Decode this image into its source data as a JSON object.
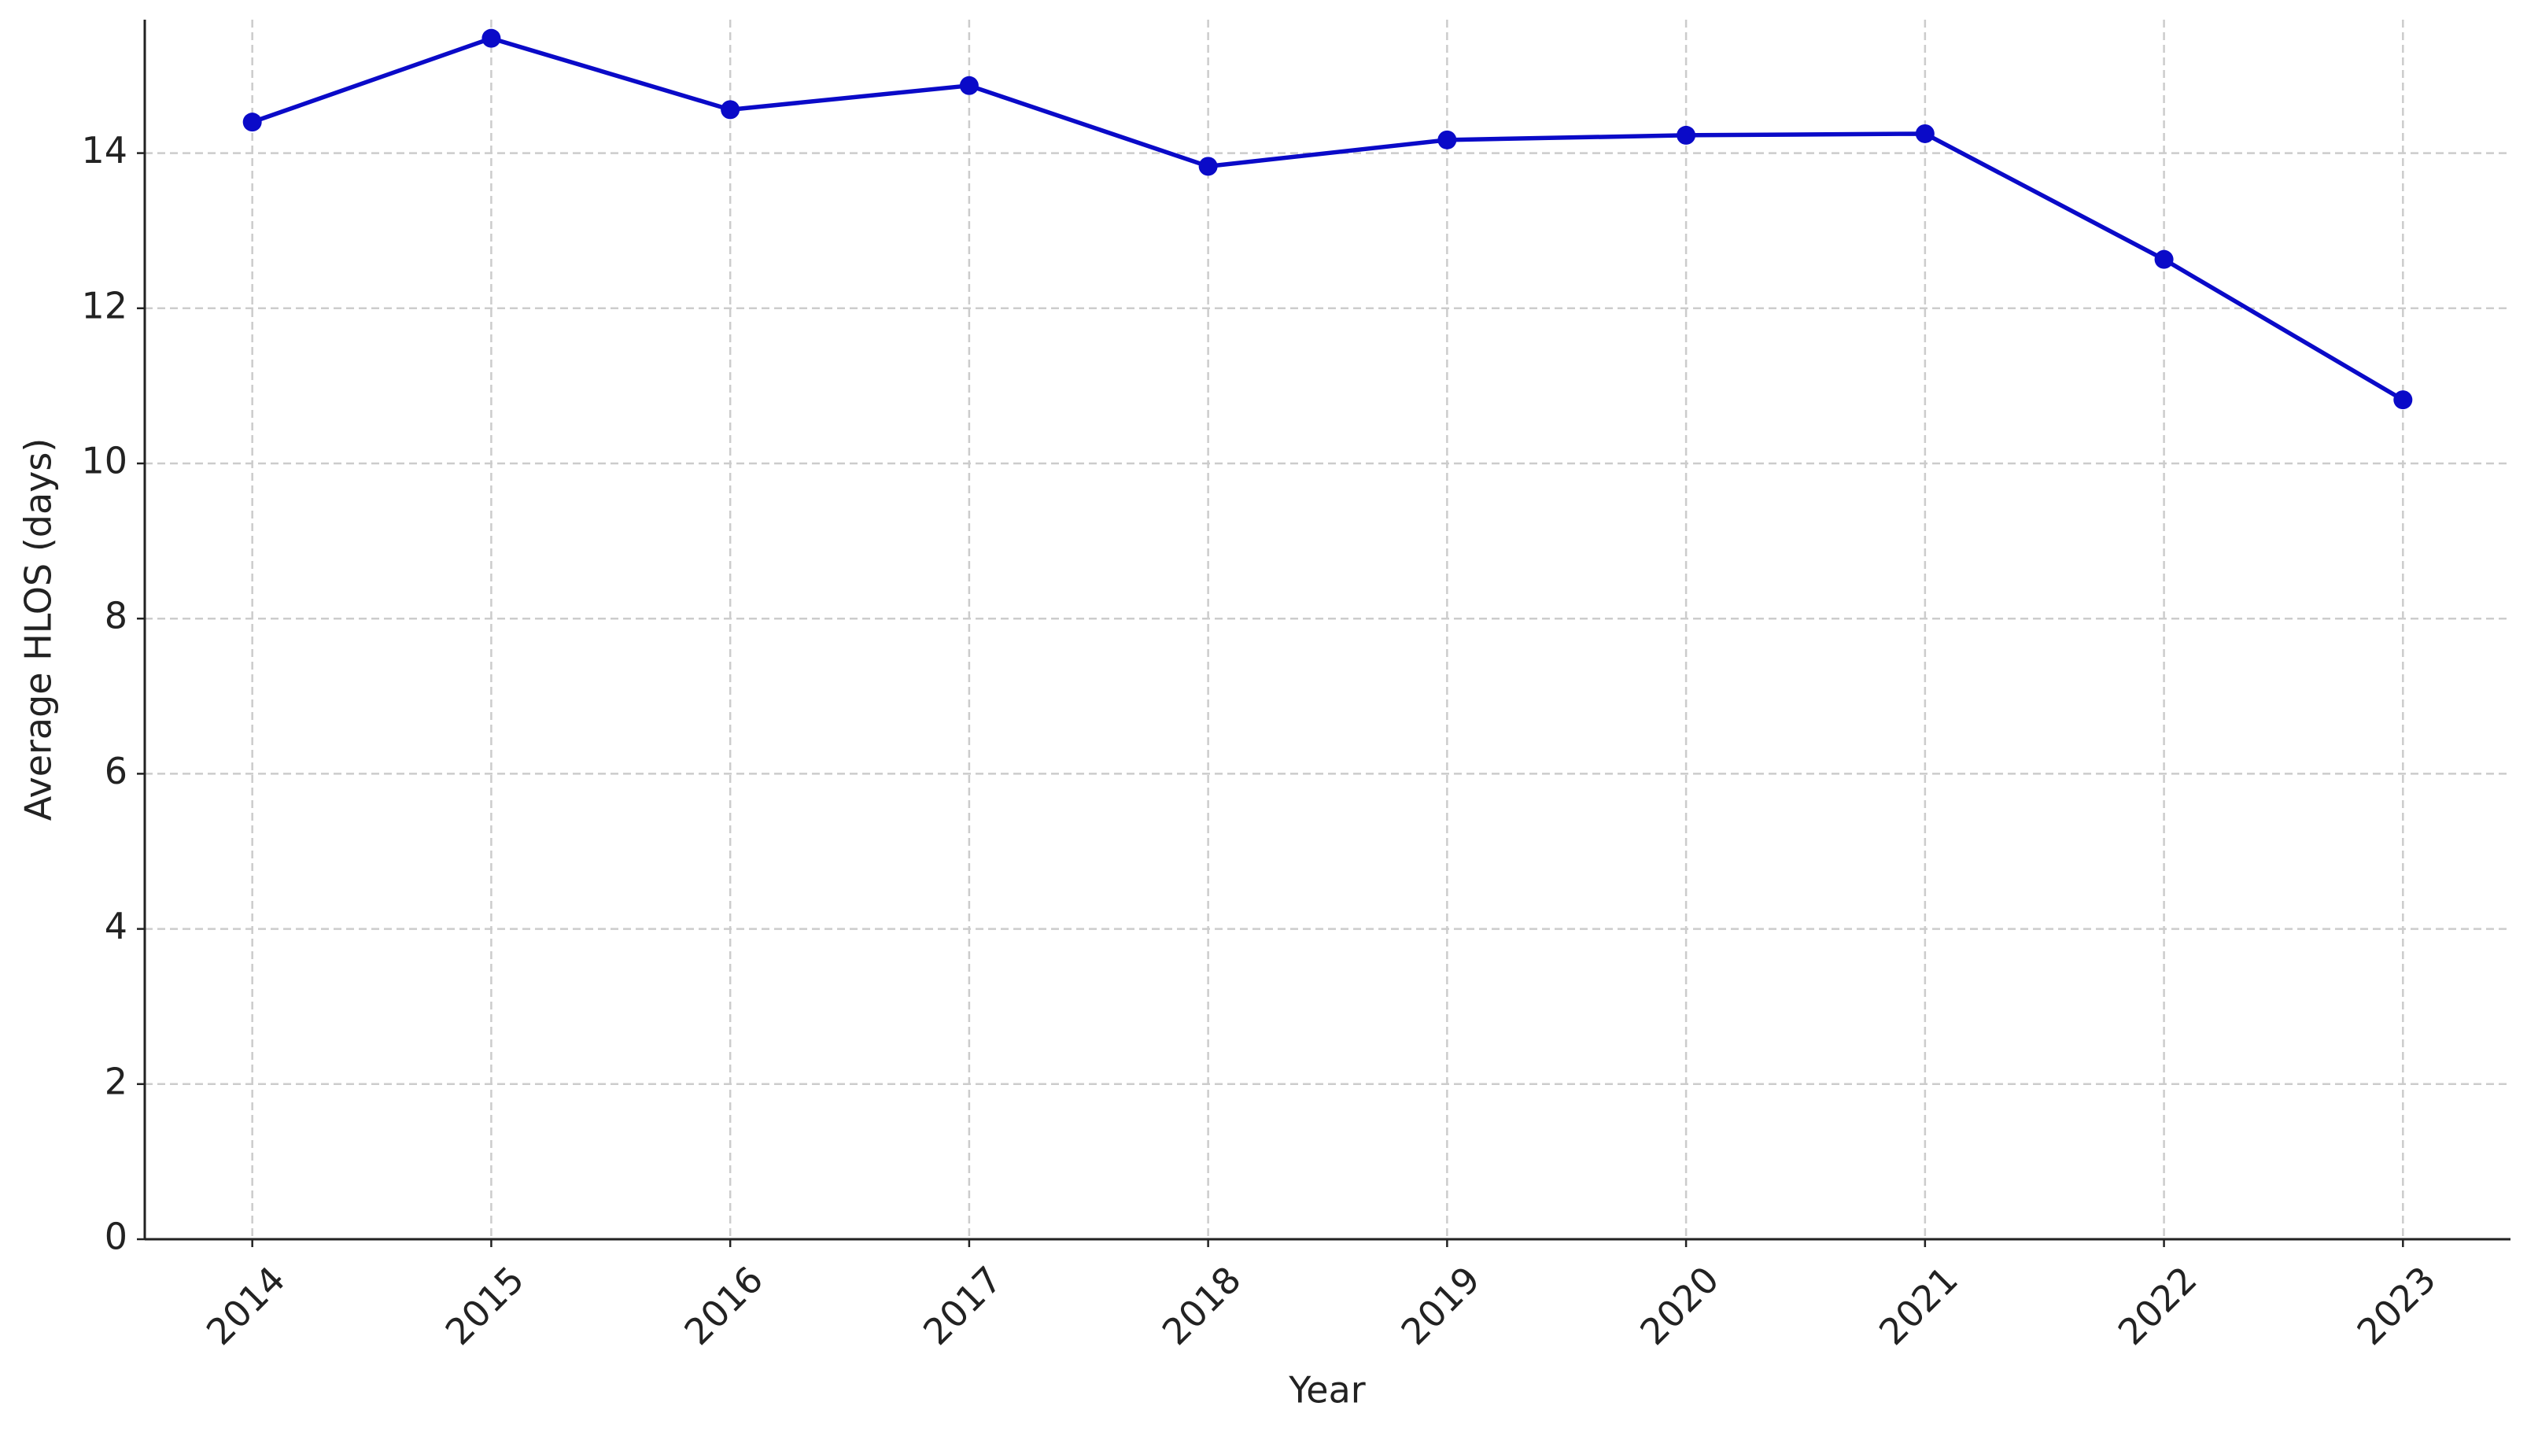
{
  "chart_data": {
    "type": "line",
    "x_label": "Year",
    "y_label": "Average HLOS (days)",
    "x": [
      2014,
      2015,
      2016,
      2017,
      2018,
      2019,
      2020,
      2021,
      2022,
      2023
    ],
    "series": [
      {
        "color": "#0a0ac8",
        "values": [
          14.4,
          15.48,
          14.56,
          14.87,
          13.83,
          14.17,
          14.23,
          14.25,
          12.63,
          10.82
        ]
      }
    ],
    "xlim": [
      2013.55,
      2023.45
    ],
    "xticks": [
      2014,
      2015,
      2016,
      2017,
      2018,
      2019,
      2020,
      2021,
      2022,
      2023
    ],
    "ylim": [
      0,
      15.72
    ],
    "yticks": [
      0,
      2,
      4,
      6,
      8,
      10,
      12,
      14
    ],
    "grid": true,
    "markers": true
  }
}
